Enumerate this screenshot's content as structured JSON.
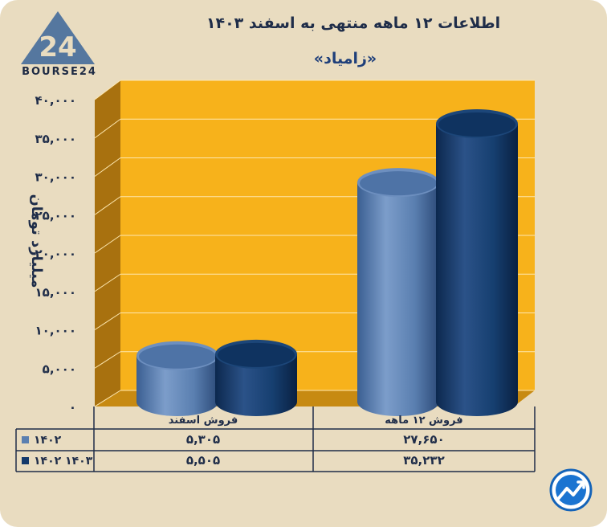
{
  "brand": {
    "logo_number": "24",
    "logo_text": "BOURSE24"
  },
  "chart_data": {
    "type": "bar",
    "title": "اطلاعات ۱۲ ماهه منتهی به اسفند ۱۴۰۳",
    "subtitle": "«زامیاد»",
    "ylabel": "میلیارد تومان",
    "ylim": [
      0,
      40000
    ],
    "yticks": [
      "۰",
      "۵,۰۰۰",
      "۱۰,۰۰۰",
      "۱۵,۰۰۰",
      "۲۰,۰۰۰",
      "۲۵,۰۰۰",
      "۳۰,۰۰۰",
      "۳۵,۰۰۰",
      "۴۰,۰۰۰"
    ],
    "ytick_values": [
      0,
      5000,
      10000,
      15000,
      20000,
      25000,
      30000,
      35000,
      40000
    ],
    "categories": [
      "فروش اسفند",
      "فروش ۱۲ ماهه"
    ],
    "series": [
      {
        "name": "۱۴۰۲",
        "values": [
          5305,
          27650
        ],
        "value_labels": [
          "۵,۳۰۵",
          "۲۷,۶۵۰"
        ],
        "color": "#5a7fb0"
      },
      {
        "name": "۱۴۰۲ ۱۴۰۳",
        "values": [
          5505,
          35232
        ],
        "value_labels": [
          "۵,۵۰۵",
          "۳۵,۲۳۲"
        ],
        "color": "#143a6b"
      }
    ],
    "grid": true,
    "legend": "table-bottom",
    "colors": {
      "plot_bg": "#f7b21b",
      "side_wall": "#a8710f",
      "floor": "#c78a12",
      "grid": "#fde7b0"
    }
  }
}
